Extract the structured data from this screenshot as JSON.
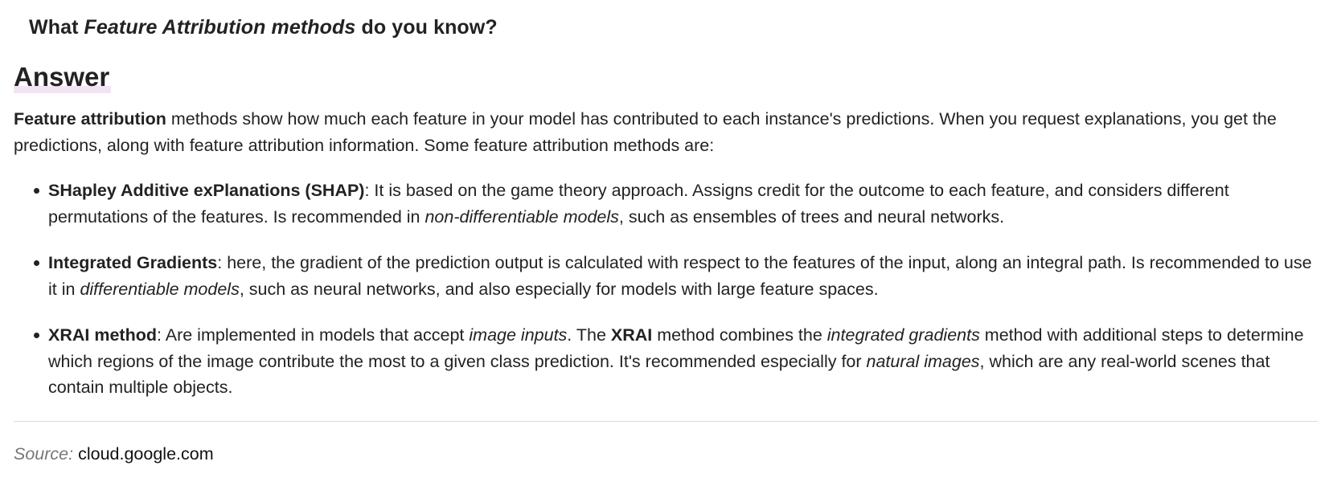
{
  "question": {
    "prefix": "What ",
    "emphasis": "Feature Attribution methods",
    "suffix": " do you know?"
  },
  "answer": {
    "heading": "Answer",
    "intro": {
      "bold": "Feature attribution",
      "text": " methods show how much each feature in your model has contributed to each instance's predictions. When you request explanations, you get the predictions, along with feature attribution information. Some feature attribution methods are:"
    },
    "methods": [
      {
        "name": "SHapley Additive exPlanations (SHAP)",
        "text1": ": It is based on the game theory approach. Assigns credit for the outcome to each feature, and considers different permutations of the features. Is recommended in ",
        "italic1": "non-differentiable models",
        "text2": ", such as ensembles of trees and neural networks."
      },
      {
        "name": "Integrated Gradients",
        "text1": ": here, the gradient of the prediction output is calculated with respect to the features of the input, along an integral path. Is recommended to use it in ",
        "italic1": "differentiable models",
        "text2": ", such as neural networks, and also especially for models with large feature spaces."
      },
      {
        "name": "XRAI method",
        "text1": ": Are implemented in models that accept ",
        "italic1": "image inputs",
        "text2": ". The ",
        "bold2": "XRAI",
        "text3": " method combines the ",
        "italic2": "integrated gradients",
        "text4": " method with additional steps to determine which regions of the image contribute the most to a given class prediction. It's recommended especially for ",
        "italic3": "natural images",
        "text5": ", which are any real-world scenes that contain multiple objects."
      }
    ]
  },
  "source": {
    "label": "Source:",
    "link": "cloud.google.com"
  }
}
